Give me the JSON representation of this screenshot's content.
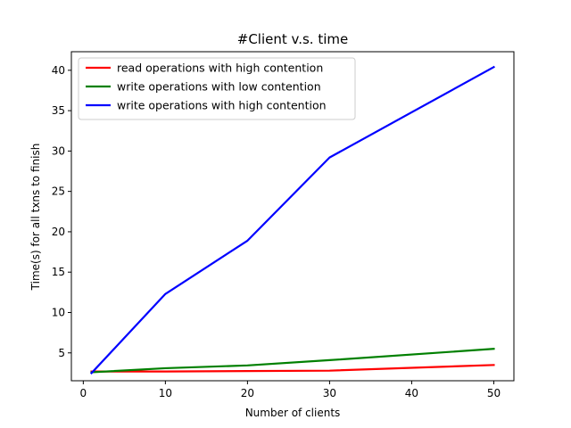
{
  "chart_data": {
    "type": "line",
    "title": "#Client v.s. time",
    "xlabel": "Number of clients",
    "ylabel": "Time(s) for all txns to finish",
    "x": [
      1,
      10,
      20,
      30,
      50
    ],
    "xlim": [
      -1.45,
      52.45
    ],
    "ylim": [
      1.55,
      42.3
    ],
    "xticks": [
      0,
      10,
      20,
      30,
      40,
      50
    ],
    "yticks": [
      5,
      10,
      15,
      20,
      25,
      30,
      35,
      40
    ],
    "grid": false,
    "legend_position": "upper left",
    "series": [
      {
        "name": "read operations with high contention",
        "color": "#ff0000",
        "values": [
          2.7,
          2.7,
          2.75,
          2.8,
          3.5
        ]
      },
      {
        "name": "write operations with low contention",
        "color": "#008000",
        "values": [
          2.6,
          3.1,
          3.45,
          4.1,
          5.5
        ]
      },
      {
        "name": "write operations with high contention",
        "color": "#0000ff",
        "values": [
          2.5,
          12.3,
          18.9,
          29.2,
          40.4
        ]
      }
    ]
  }
}
